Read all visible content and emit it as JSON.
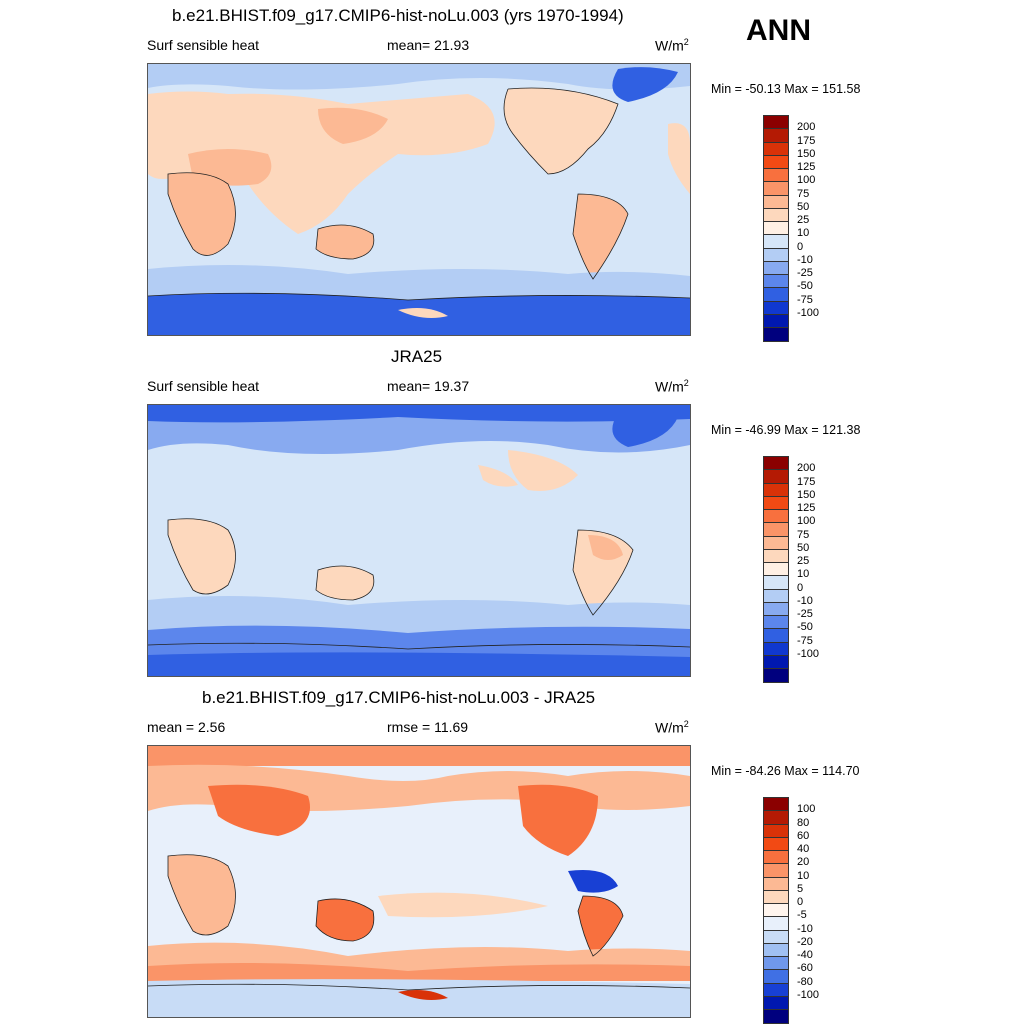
{
  "season": "ANN",
  "panels": [
    {
      "title": "b.e21.BHIST.f09_g17.CMIP6-hist-noLu.003 (yrs 1970-1994)",
      "left_text": "Surf sensible heat",
      "middle_text": "mean=  21.93",
      "units_base": "W/m",
      "units_exp": "2",
      "minmax": "Min = -50.13 Max = 151.58",
      "colorbar_labels": [
        "200",
        "175",
        "150",
        "125",
        "100",
        "75",
        "50",
        "25",
        "10",
        "0",
        "-10",
        "-25",
        "-50",
        "-75",
        "-100"
      ],
      "colorbar_colors": [
        "#8b0000",
        "#b41a04",
        "#d93208",
        "#f24a14",
        "#f8703e",
        "#fa9468",
        "#fcb994",
        "#fdd8bd",
        "#fff0e4",
        "#d6e6f8",
        "#b3cdf4",
        "#88aaf0",
        "#5c86ec",
        "#3060e2",
        "#1038d0",
        "#0018b0",
        "#00007e"
      ]
    },
    {
      "title": "JRA25",
      "left_text": "Surf sensible heat",
      "middle_text": "mean=  19.37",
      "units_base": "W/m",
      "units_exp": "2",
      "minmax": "Min = -46.99 Max = 121.38",
      "colorbar_labels": [
        "200",
        "175",
        "150",
        "125",
        "100",
        "75",
        "50",
        "25",
        "10",
        "0",
        "-10",
        "-25",
        "-50",
        "-75",
        "-100"
      ],
      "colorbar_colors": [
        "#8b0000",
        "#b41a04",
        "#d93208",
        "#f24a14",
        "#f8703e",
        "#fa9468",
        "#fcb994",
        "#fdd8bd",
        "#fff0e4",
        "#d6e6f8",
        "#b3cdf4",
        "#88aaf0",
        "#5c86ec",
        "#3060e2",
        "#1038d0",
        "#0018b0",
        "#00007e"
      ]
    },
    {
      "title": "b.e21.BHIST.f09_g17.CMIP6-hist-noLu.003 - JRA25",
      "left_text": "mean =   2.56",
      "middle_text": "rmse =  11.69",
      "units_base": "W/m",
      "units_exp": "2",
      "minmax": "Min = -84.26 Max = 114.70",
      "colorbar_labels": [
        "100",
        "80",
        "60",
        "40",
        "20",
        "10",
        "5",
        "0",
        "-5",
        "-10",
        "-20",
        "-40",
        "-60",
        "-80",
        "-100"
      ],
      "colorbar_colors": [
        "#8b0000",
        "#b41a04",
        "#d93208",
        "#f24a14",
        "#f8703e",
        "#fa9468",
        "#fcb994",
        "#fdd8bd",
        "#fff5ee",
        "#e8f0fb",
        "#c8dcf6",
        "#a0c0f2",
        "#7098ec",
        "#4070e4",
        "#1840d4",
        "#0018b0",
        "#00007e"
      ]
    }
  ]
}
